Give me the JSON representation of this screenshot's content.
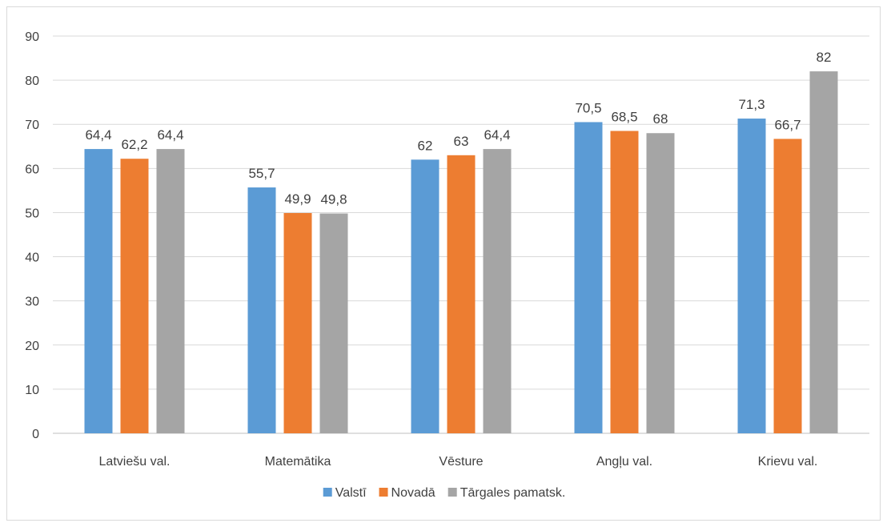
{
  "chart_data": {
    "type": "bar",
    "categories": [
      "Latviešu val.",
      "Matemātika",
      "Vēsture",
      "Angļu val.",
      "Krievu val."
    ],
    "series": [
      {
        "name": "Valstī",
        "color": "#5b9bd5",
        "values": [
          64.4,
          55.7,
          62,
          70.5,
          71.3
        ],
        "labels": [
          "64,4",
          "55,7",
          "62",
          "70,5",
          "71,3"
        ]
      },
      {
        "name": "Novadā",
        "color": "#ed7d31",
        "values": [
          62.2,
          49.9,
          63,
          68.5,
          66.7
        ],
        "labels": [
          "62,2",
          "49,9",
          "63",
          "68,5",
          "66,7"
        ]
      },
      {
        "name": "Tārgales pamatsk.",
        "color": "#a5a5a5",
        "values": [
          64.4,
          49.8,
          64.4,
          68,
          82
        ],
        "labels": [
          "64,4",
          "49,8",
          "64,4",
          "68",
          "82"
        ]
      }
    ],
    "ylim": [
      0,
      90
    ],
    "yticks": [
      0,
      10,
      20,
      30,
      40,
      50,
      60,
      70,
      80,
      90
    ],
    "grid": true,
    "legend_position": "bottom"
  }
}
